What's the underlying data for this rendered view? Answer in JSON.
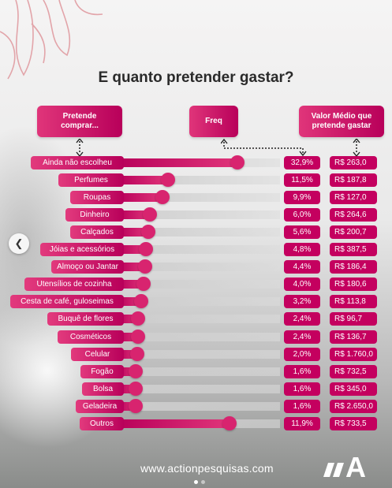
{
  "title": "E quanto pretender gastar?",
  "headers": {
    "pretende": "Pretende comprar...",
    "freq": "Freq",
    "valor": "Valor Médio que pretende gastar"
  },
  "chart_data": {
    "type": "bar",
    "title": "E quanto pretender gastar?",
    "categories": [
      "Ainda não escolheu",
      "Perfumes",
      "Roupas",
      "Dinheiro",
      "Calçados",
      "Jóias e acessórios",
      "Almoço ou Jantar",
      "Utensílios de cozinha",
      "Cesta de café, guloseimas",
      "Buquê de flores",
      "Cosméticos",
      "Celular",
      "Fogão",
      "Bolsa",
      "Geladeira",
      "Outros"
    ],
    "values": [
      32.9,
      11.5,
      9.9,
      6.0,
      5.6,
      4.8,
      4.4,
      4.0,
      3.2,
      2.4,
      2.4,
      2.0,
      1.6,
      1.6,
      1.6,
      11.9
    ],
    "freq_labels": [
      "32,9%",
      "11,5%",
      "9,9%",
      "6,0%",
      "5,6%",
      "4,8%",
      "4,4%",
      "4,0%",
      "3,2%",
      "2,4%",
      "2,4%",
      "2,0%",
      "1,6%",
      "1,6%",
      "1,6%",
      "11,9%"
    ],
    "value_labels": [
      "R$ 263,0",
      "R$ 187,8",
      "R$ 127,0",
      "R$ 264,6",
      "R$ 200,7",
      "R$ 387,5",
      "R$ 186,4",
      "R$ 180,6",
      "R$ 113,8",
      "R$ 96,7",
      "R$ 136,7",
      "R$ 1.760,0",
      "R$ 732,5",
      "R$ 345,0",
      "R$ 2.650,0",
      "R$ 733,5"
    ],
    "avg_values": [
      263.0,
      187.8,
      127.0,
      264.6,
      200.7,
      387.5,
      186.4,
      180.6,
      113.8,
      96.7,
      136.7,
      1760.0,
      732.5,
      345.0,
      2650.0,
      733.5
    ]
  },
  "footer": {
    "url": "www.actionpesquisas.com",
    "logo_text": "A"
  },
  "colors": {
    "accent": "#c4005f",
    "accent_light": "#e0357a"
  }
}
